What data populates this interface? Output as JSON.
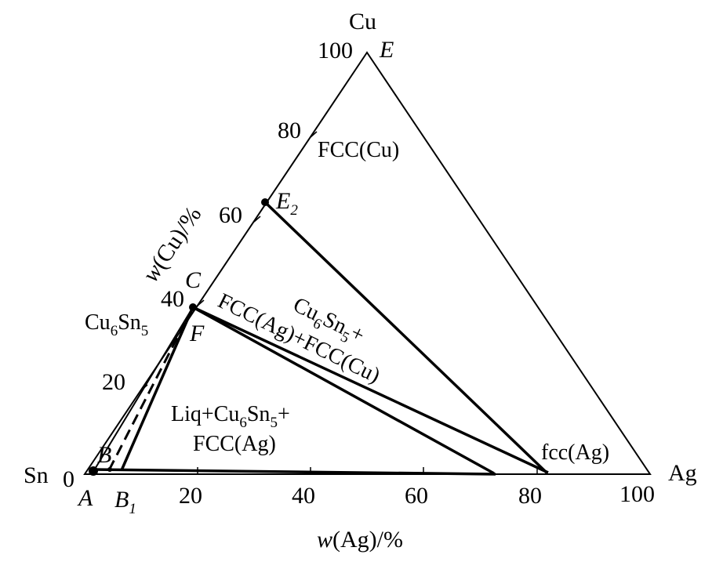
{
  "corners": {
    "top": "Cu",
    "left": "Sn",
    "right": "Ag"
  },
  "corner_values": {
    "top": "100",
    "left": "0",
    "right": "100"
  },
  "axes": {
    "left": {
      "label_prefix": "w",
      "label_suffix": "(Cu)/%",
      "ticks": [
        "20",
        "40",
        "60",
        "80"
      ]
    },
    "bottom": {
      "label_prefix": "w",
      "label_suffix": "(Ag)/%",
      "ticks": [
        "20",
        "40",
        "60",
        "80"
      ]
    }
  },
  "points": {
    "E": "E",
    "E2": {
      "base": "E",
      "sub": "2"
    },
    "C": "C",
    "F": "F",
    "B": "B",
    "A": "A",
    "B1": {
      "base": "B",
      "sub": "1"
    }
  },
  "regions": {
    "fcc_cu": "FCC(Cu)",
    "cu6sn5_phase": {
      "a": "Cu",
      "sub1": "6",
      "b": "Sn",
      "sub2": "5"
    },
    "three_phase_1": {
      "a": "Cu",
      "sub1": "6",
      "b": "Sn",
      "sub2": "5",
      "c": "+"
    },
    "three_phase_2": "FCC(Ag)+FCC(Cu)",
    "liq_1": {
      "a": "Liq+Cu",
      "sub1": "6",
      "b": "Sn",
      "sub2": "5",
      "c": "+"
    },
    "liq_2": "FCC(Ag)",
    "fcc_ag": "fcc(Ag)"
  },
  "colors": {
    "ink": "#000000",
    "background": "#ffffff"
  }
}
